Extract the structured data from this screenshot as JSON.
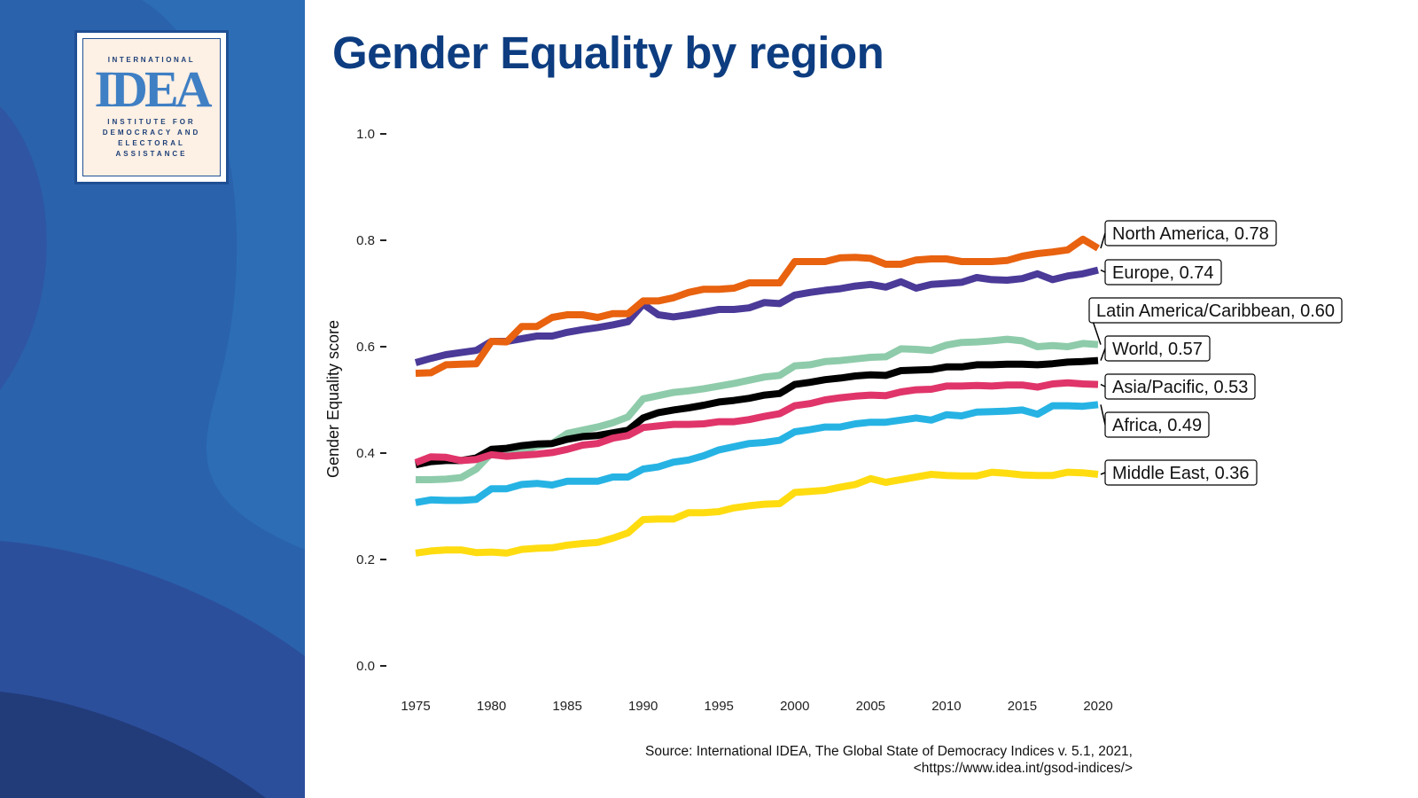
{
  "page": {
    "title": "Gender Equality by region",
    "source_line1": "Source: International IDEA, The Global State of Democracy Indices v. 5.1, 2021,",
    "source_line2": "<https://www.idea.int/gsod-indices/>"
  },
  "logo": {
    "top_text": "INTERNATIONAL",
    "mark": "IDEA",
    "sub_text": "INSTITUTE FOR DEMOCRACY AND ELECTORAL ASSISTANCE"
  },
  "colors": {
    "title": "#0d3d80",
    "sidebar": "#2a62ac"
  },
  "chart_data": {
    "type": "line",
    "title": "Gender Equality by region",
    "xlabel": "",
    "ylabel": "Gender Equality score",
    "xlim": [
      1975,
      2020
    ],
    "ylim": [
      0,
      1
    ],
    "xticks": [
      "1975",
      "1980",
      "1985",
      "1990",
      "1995",
      "2000",
      "2005",
      "2010",
      "2015",
      "2020"
    ],
    "yticks": [
      "0.0",
      "0.2",
      "0.4",
      "0.6",
      "0.8",
      "1.0"
    ],
    "grid": false,
    "legend": "direct labels at right end of lines",
    "x": [
      1975,
      1976,
      1977,
      1978,
      1979,
      1980,
      1981,
      1982,
      1983,
      1984,
      1985,
      1986,
      1987,
      1988,
      1989,
      1990,
      1991,
      1992,
      1993,
      1994,
      1995,
      1996,
      1997,
      1998,
      1999,
      2000,
      2001,
      2002,
      2003,
      2004,
      2005,
      2006,
      2007,
      2008,
      2009,
      2010,
      2011,
      2012,
      2013,
      2014,
      2015,
      2016,
      2017,
      2018,
      2019,
      2020
    ],
    "series": [
      {
        "name": "Europe",
        "label": "Europe, 0.74",
        "color": "#4b3a98",
        "values": [
          0.57,
          0.578,
          0.585,
          0.589,
          0.593,
          0.61,
          0.61,
          0.615,
          0.62,
          0.62,
          0.627,
          0.632,
          0.636,
          0.641,
          0.647,
          0.68,
          0.66,
          0.656,
          0.66,
          0.665,
          0.67,
          0.67,
          0.673,
          0.683,
          0.681,
          0.697,
          0.702,
          0.706,
          0.709,
          0.714,
          0.717,
          0.712,
          0.722,
          0.71,
          0.717,
          0.719,
          0.721,
          0.73,
          0.726,
          0.725,
          0.728,
          0.737,
          0.726,
          0.733,
          0.737,
          0.744
        ]
      },
      {
        "name": "North America",
        "label": "North America, 0.78",
        "color": "#e8620f",
        "values": [
          0.55,
          0.551,
          0.566,
          0.567,
          0.568,
          0.61,
          0.609,
          0.638,
          0.638,
          0.655,
          0.66,
          0.66,
          0.655,
          0.662,
          0.662,
          0.686,
          0.686,
          0.692,
          0.702,
          0.708,
          0.708,
          0.71,
          0.72,
          0.72,
          0.72,
          0.76,
          0.76,
          0.76,
          0.767,
          0.768,
          0.766,
          0.755,
          0.755,
          0.763,
          0.765,
          0.765,
          0.76,
          0.76,
          0.76,
          0.762,
          0.77,
          0.775,
          0.778,
          0.782,
          0.802,
          0.785
        ]
      },
      {
        "name": "Latin America/Caribbean",
        "label": "Latin America/Caribbean, 0.60",
        "color": "#8ecbaa",
        "values": [
          0.35,
          0.35,
          0.351,
          0.354,
          0.37,
          0.4,
          0.4,
          0.405,
          0.413,
          0.418,
          0.437,
          0.443,
          0.449,
          0.457,
          0.468,
          0.502,
          0.508,
          0.514,
          0.517,
          0.521,
          0.526,
          0.531,
          0.537,
          0.543,
          0.546,
          0.564,
          0.566,
          0.572,
          0.574,
          0.577,
          0.58,
          0.581,
          0.596,
          0.595,
          0.593,
          0.603,
          0.608,
          0.609,
          0.611,
          0.614,
          0.611,
          0.6,
          0.602,
          0.6,
          0.606,
          0.604
        ]
      },
      {
        "name": "World",
        "label": "World, 0.57",
        "color": "#000000",
        "values": [
          0.378,
          0.384,
          0.386,
          0.386,
          0.391,
          0.407,
          0.409,
          0.414,
          0.417,
          0.418,
          0.426,
          0.431,
          0.433,
          0.438,
          0.443,
          0.466,
          0.476,
          0.481,
          0.485,
          0.49,
          0.496,
          0.499,
          0.503,
          0.509,
          0.512,
          0.529,
          0.533,
          0.538,
          0.541,
          0.545,
          0.547,
          0.546,
          0.555,
          0.556,
          0.557,
          0.562,
          0.562,
          0.566,
          0.566,
          0.567,
          0.567,
          0.566,
          0.568,
          0.571,
          0.572,
          0.574
        ]
      },
      {
        "name": "Asia/Pacific",
        "label": "Asia/Pacific, 0.53",
        "color": "#e0356a",
        "values": [
          0.382,
          0.393,
          0.392,
          0.386,
          0.388,
          0.397,
          0.394,
          0.396,
          0.398,
          0.401,
          0.407,
          0.415,
          0.418,
          0.428,
          0.433,
          0.448,
          0.451,
          0.454,
          0.454,
          0.455,
          0.459,
          0.459,
          0.463,
          0.469,
          0.474,
          0.489,
          0.493,
          0.5,
          0.504,
          0.507,
          0.509,
          0.508,
          0.515,
          0.519,
          0.52,
          0.526,
          0.526,
          0.527,
          0.526,
          0.528,
          0.528,
          0.524,
          0.53,
          0.532,
          0.53,
          0.529
        ]
      },
      {
        "name": "Africa",
        "label": "Africa, 0.49",
        "color": "#26b3e4",
        "values": [
          0.307,
          0.312,
          0.311,
          0.311,
          0.313,
          0.333,
          0.333,
          0.341,
          0.343,
          0.34,
          0.347,
          0.347,
          0.347,
          0.355,
          0.355,
          0.37,
          0.374,
          0.383,
          0.387,
          0.395,
          0.406,
          0.412,
          0.418,
          0.42,
          0.424,
          0.44,
          0.444,
          0.449,
          0.449,
          0.455,
          0.458,
          0.458,
          0.462,
          0.466,
          0.462,
          0.472,
          0.47,
          0.477,
          0.478,
          0.479,
          0.481,
          0.473,
          0.489,
          0.489,
          0.488,
          0.491
        ]
      },
      {
        "name": "Middle East",
        "label": "Middle East, 0.36",
        "color": "#ffdc10",
        "values": [
          0.212,
          0.216,
          0.218,
          0.218,
          0.213,
          0.214,
          0.212,
          0.219,
          0.221,
          0.222,
          0.227,
          0.23,
          0.232,
          0.24,
          0.25,
          0.275,
          0.276,
          0.276,
          0.288,
          0.288,
          0.29,
          0.297,
          0.301,
          0.304,
          0.305,
          0.326,
          0.328,
          0.33,
          0.336,
          0.341,
          0.352,
          0.345,
          0.35,
          0.355,
          0.36,
          0.358,
          0.357,
          0.357,
          0.364,
          0.362,
          0.359,
          0.358,
          0.358,
          0.364,
          0.363,
          0.36
        ]
      }
    ]
  }
}
